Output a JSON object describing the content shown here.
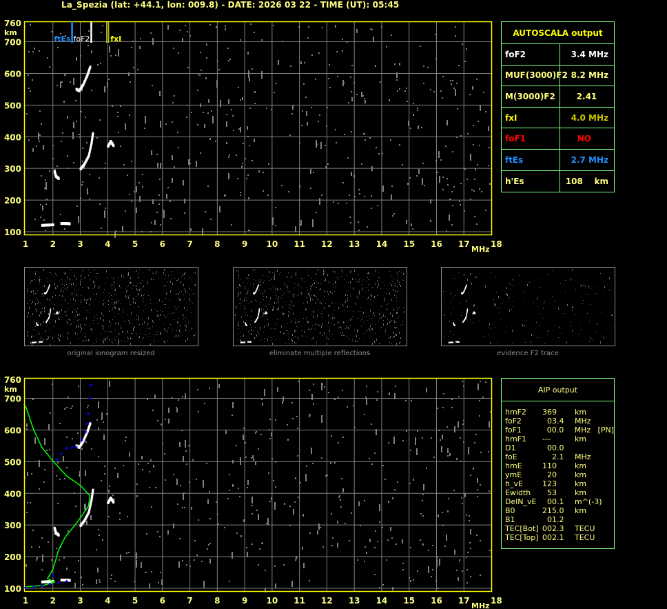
{
  "title": "La_Spezia (lat: +44.1, lon: 009.8) - DATE: 2026 03 22 - TIME (UT): 05:45",
  "colors": {
    "text": "#ffff80",
    "frame": "#ffff00",
    "grid": "#808080",
    "table_border": "#80ff80",
    "foF2": "#ffffff",
    "fxI": "#c8c800",
    "foF1": "#ff0000",
    "ftEs": "#1e90ff",
    "profile": "#00ff00",
    "aip_trace": "#0000ff",
    "echo": "#ffffff",
    "noise": "#808080"
  },
  "autoscala": {
    "title": "AUTOSCALA output",
    "rows": [
      {
        "label": "foF2",
        "value": "3.4 MHz",
        "label_color": "#ffffff",
        "value_color": "#ffffff"
      },
      {
        "label": "MUF(3000)F2",
        "value": "8.2 MHz",
        "label_color": "#ffff80",
        "value_color": "#ffff80"
      },
      {
        "label": "M(3000)F2",
        "value": "2.41    ",
        "label_color": "#ffff80",
        "value_color": "#ffff80"
      },
      {
        "label": "fxI",
        "value": "4.0 MHz",
        "label_color": "#ffff00",
        "value_color": "#c8c800"
      },
      {
        "label": "foF1",
        "value": "NO      ",
        "label_color": "#ff0000",
        "value_color": "#ff0000"
      },
      {
        "label": "ftEs",
        "value": "2.7 MHz",
        "label_color": "#1e90ff",
        "value_color": "#1e90ff"
      },
      {
        "label": "h'Es",
        "value": "108    km",
        "label_color": "#ffff80",
        "value_color": "#ffff80"
      }
    ]
  },
  "aip": {
    "title": "AIP output",
    "rows": [
      [
        "hmF2",
        "369",
        "km",
        ""
      ],
      [
        "foF2",
        "  03.4",
        "MHz",
        ""
      ],
      [
        "foF1",
        "  00.0",
        "MHz",
        "[PN]"
      ],
      [
        "hmF1",
        "---",
        "km",
        ""
      ],
      [
        "D1",
        "  00.0",
        "",
        ""
      ],
      [
        "foE",
        "    2.1",
        "MHz",
        ""
      ],
      [
        "hmE",
        "110",
        "km",
        ""
      ],
      [
        "ymE",
        "  20",
        "km",
        ""
      ],
      [
        "h_vE",
        "123",
        "km",
        ""
      ],
      [
        "Ewidth",
        "  53",
        "km",
        ""
      ],
      [
        "DelN_vE",
        "  00.1",
        "m^(-3)",
        ""
      ],
      [
        "B0",
        "215.0",
        "km",
        ""
      ],
      [
        "B1",
        "  01.2",
        "",
        ""
      ],
      [
        "TEC[Bot]",
        "002.3",
        "TECU",
        ""
      ],
      [
        "TEC[Top]",
        "002.1",
        "TECU",
        ""
      ]
    ]
  },
  "thumbnails": [
    {
      "caption": "original ionogram resized"
    },
    {
      "caption": "eliminate multiple reflections"
    },
    {
      "caption": "evidence F2 trace"
    }
  ],
  "chart_data": [
    {
      "type": "scatter",
      "name": "ionogram-autoscala",
      "xlabel": "MHz",
      "ylabel": "km",
      "xlim": [
        1,
        18
      ],
      "ylim": [
        100,
        760
      ],
      "xticks": [
        "1",
        "2",
        "3",
        "4",
        "5",
        "6",
        "7",
        "8",
        "9",
        "10",
        "11",
        "12",
        "13",
        "14",
        "15",
        "16",
        "17",
        "18"
      ],
      "yticks": [
        "100",
        "200",
        "300",
        "400",
        "500",
        "600",
        "700",
        "760"
      ],
      "grid": true,
      "markers": [
        {
          "label": "ftEs",
          "freq": 2.7,
          "color": "#1e90ff"
        },
        {
          "label": "foF2",
          "freq": 3.4,
          "color": "#ffffff"
        },
        {
          "label": "fxI",
          "freq": 4.0,
          "color": "#ffff00"
        }
      ],
      "echo_traces": [
        [
          [
            1.6,
            120
          ],
          [
            1.8,
            121
          ],
          [
            2.0,
            122
          ]
        ],
        [
          [
            2.3,
            126
          ],
          [
            2.5,
            126
          ],
          [
            2.6,
            125
          ]
        ],
        [
          [
            2.05,
            290
          ],
          [
            2.1,
            275
          ],
          [
            2.2,
            268
          ]
        ],
        [
          [
            3.0,
            298
          ],
          [
            3.15,
            315
          ],
          [
            3.3,
            340
          ],
          [
            3.4,
            380
          ],
          [
            3.45,
            410
          ]
        ],
        [
          [
            2.85,
            550
          ],
          [
            2.95,
            545
          ],
          [
            3.1,
            565
          ],
          [
            3.25,
            595
          ],
          [
            3.35,
            620
          ]
        ],
        [
          [
            4.0,
            370
          ],
          [
            4.1,
            385
          ],
          [
            4.2,
            372
          ]
        ]
      ]
    },
    {
      "type": "line",
      "name": "ionogram-aip",
      "xlabel": "MHz",
      "ylabel": "km",
      "xlim": [
        1,
        18
      ],
      "ylim": [
        100,
        760
      ],
      "xticks": [
        "1",
        "2",
        "3",
        "4",
        "5",
        "6",
        "7",
        "8",
        "9",
        "10",
        "11",
        "12",
        "13",
        "14",
        "15",
        "16",
        "17",
        "18"
      ],
      "yticks": [
        "100",
        "200",
        "300",
        "400",
        "500",
        "600",
        "700",
        "760"
      ],
      "grid": true,
      "profile": [
        [
          1.0,
          677
        ],
        [
          1.3,
          600
        ],
        [
          1.6,
          545
        ],
        [
          2.0,
          502
        ],
        [
          2.5,
          455
        ],
        [
          3.0,
          425
        ],
        [
          3.35,
          393
        ],
        [
          3.3,
          360
        ],
        [
          2.9,
          310
        ],
        [
          2.45,
          262
        ],
        [
          2.2,
          220
        ],
        [
          2.1,
          188
        ],
        [
          2.0,
          160
        ],
        [
          1.8,
          131
        ],
        [
          2.05,
          120
        ],
        [
          1.65,
          109
        ],
        [
          1.0,
          105
        ]
      ],
      "aip_trace": [
        [
          1.0,
          102
        ],
        [
          1.3,
          104
        ],
        [
          1.6,
          108
        ],
        [
          1.9,
          113
        ],
        [
          2.2,
          117
        ],
        [
          2.5,
          122
        ],
        [
          2.0,
          140
        ],
        [
          2.15,
          507
        ],
        [
          2.3,
          525
        ],
        [
          2.5,
          542
        ],
        [
          2.7,
          545
        ],
        [
          2.85,
          546
        ],
        [
          3.05,
          568
        ],
        [
          3.2,
          594
        ],
        [
          3.25,
          620
        ],
        [
          3.3,
          651
        ],
        [
          3.35,
          700
        ],
        [
          3.4,
          743
        ]
      ],
      "echo_traces": [
        [
          [
            1.6,
            120
          ],
          [
            1.8,
            121
          ],
          [
            2.0,
            122
          ]
        ],
        [
          [
            2.3,
            126
          ],
          [
            2.5,
            126
          ],
          [
            2.6,
            125
          ]
        ],
        [
          [
            2.05,
            290
          ],
          [
            2.1,
            275
          ],
          [
            2.2,
            268
          ]
        ],
        [
          [
            3.0,
            298
          ],
          [
            3.15,
            315
          ],
          [
            3.3,
            340
          ],
          [
            3.4,
            380
          ],
          [
            3.45,
            410
          ]
        ],
        [
          [
            2.85,
            550
          ],
          [
            2.95,
            545
          ],
          [
            3.1,
            565
          ],
          [
            3.25,
            595
          ],
          [
            3.35,
            620
          ]
        ],
        [
          [
            4.0,
            370
          ],
          [
            4.1,
            385
          ],
          [
            4.2,
            372
          ]
        ]
      ]
    }
  ]
}
